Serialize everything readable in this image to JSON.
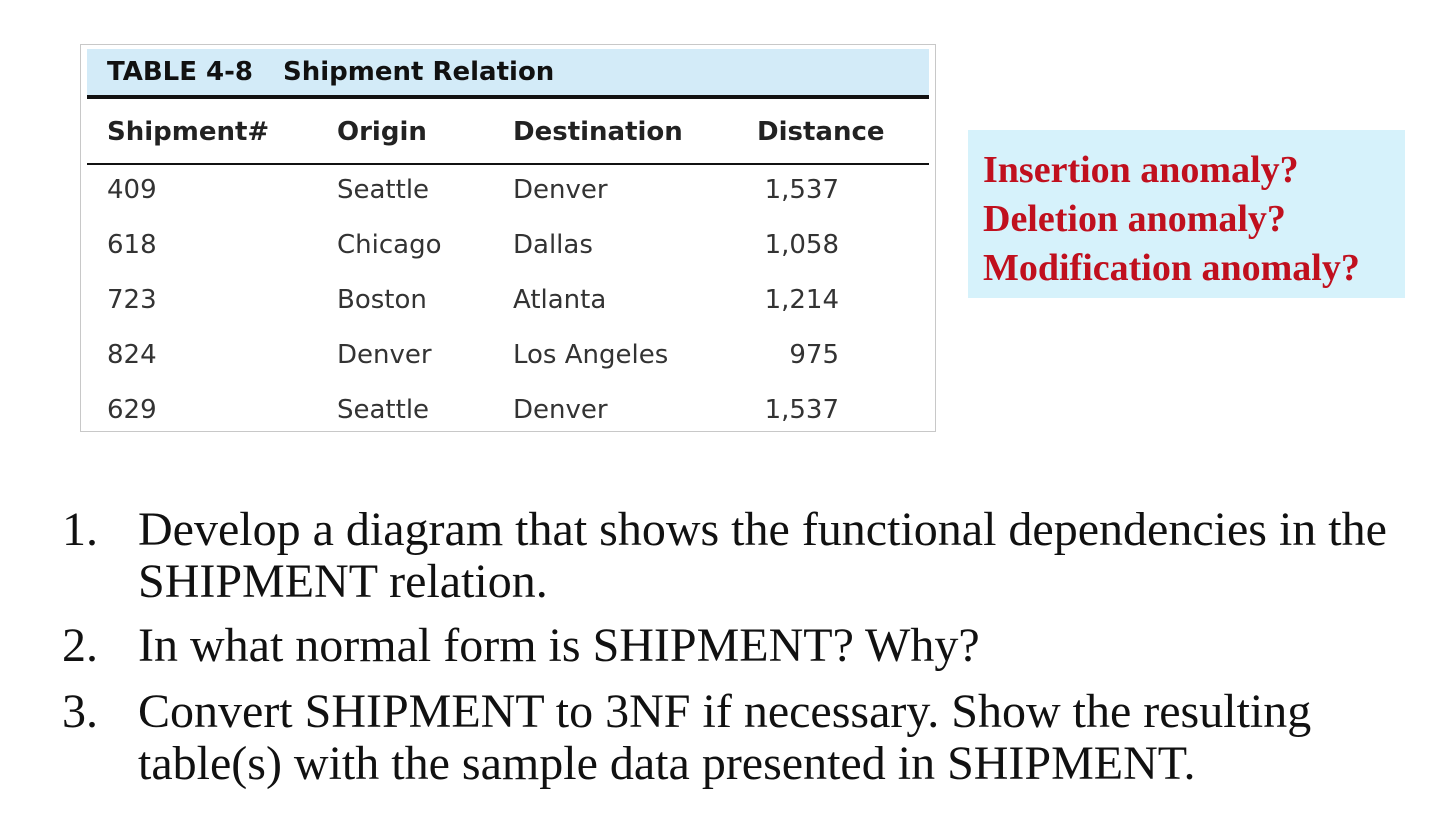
{
  "table": {
    "number": "TABLE 4-8",
    "title": "Shipment Relation",
    "headers": [
      "Shipment#",
      "Origin",
      "Destination",
      "Distance"
    ],
    "rows": [
      [
        "409",
        "Seattle",
        "Denver",
        "1,537"
      ],
      [
        "618",
        "Chicago",
        "Dallas",
        "1,058"
      ],
      [
        "723",
        "Boston",
        "Atlanta",
        "1,214"
      ],
      [
        "824",
        "Denver",
        "Los Angeles",
        "975"
      ],
      [
        "629",
        "Seattle",
        "Denver",
        "1,537"
      ]
    ]
  },
  "anomalies": [
    "Insertion anomaly?",
    "Deletion anomaly?",
    "Modification anomaly?"
  ],
  "questions": [
    {
      "num": "1.",
      "lines": [
        "Develop a diagram that shows the functional dependencies in the",
        "SHIPMENT relation."
      ]
    },
    {
      "num": "2.",
      "lines": [
        "In what normal form is SHIPMENT? Why?"
      ]
    },
    {
      "num": "3.",
      "lines": [
        "Convert SHIPMENT to 3NF if necessary. Show the resulting",
        "table(s) with the sample data presented in SHIPMENT."
      ]
    }
  ]
}
